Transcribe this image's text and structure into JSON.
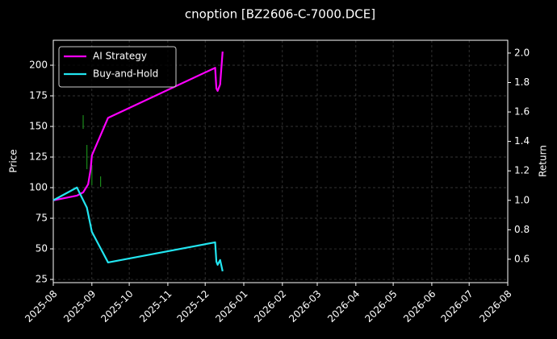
{
  "chart_data": {
    "type": "line",
    "title": "cnoption [BZ2606-C-7000.DCE]",
    "ylabel": "Price",
    "y2label": "Return",
    "xlim": [
      "2025-08",
      "2026-08"
    ],
    "xticks": [
      "2025-08",
      "2025-09",
      "2025-10",
      "2025-11",
      "2025-12",
      "2026-01",
      "2026-02",
      "2026-03",
      "2026-04",
      "2026-05",
      "2026-06",
      "2026-07",
      "2026-08"
    ],
    "ylim": [
      22.4,
      220.4
    ],
    "yticks": [
      25,
      50,
      75,
      100,
      125,
      150,
      175,
      200
    ],
    "y2lim": [
      0.441,
      2.087
    ],
    "y2ticks": [
      {
        "value": 0.6,
        "label": "0.6"
      },
      {
        "value": 0.8,
        "label": "0.8"
      },
      {
        "value": 1.0,
        "label": "1.0"
      },
      {
        "value": 1.2,
        "label": "1.2"
      },
      {
        "value": 1.4,
        "label": "1.4"
      },
      {
        "value": 1.6,
        "label": "1.6"
      },
      {
        "value": 1.8,
        "label": "1.8"
      },
      {
        "value": 2.0,
        "label": "2.0"
      }
    ],
    "grid": true,
    "legend": "upper left",
    "candles": {
      "color": "#1a8a1a",
      "x": [
        "2025-08-25",
        "2025-08-28",
        "2025-09-01",
        "2025-09-08"
      ],
      "high": [
        159.2,
        134.9,
        118.4,
        109.2
      ],
      "low": [
        148,
        115.1,
        102,
        100.7
      ]
    },
    "series": [
      {
        "name": "AI Strategy",
        "color": "#ff00ff",
        "axis": "y2",
        "x": [
          "2025-08-01",
          "2025-08-20",
          "2025-08-25",
          "2025-08-29",
          "2025-08-31",
          "2025-09-01",
          "2025-09-14",
          "2025-12-09",
          "2025-12-10",
          "2025-12-11",
          "2025-12-13",
          "2025-12-15"
        ],
        "values": [
          1.0,
          1.032,
          1.054,
          1.109,
          1.21,
          1.305,
          1.56,
          1.9,
          1.76,
          1.743,
          1.787,
          2.01
        ]
      },
      {
        "name": "Buy-and-Hold",
        "color": "#22e5f0",
        "axis": "y2",
        "x": [
          "2025-08-01",
          "2025-08-20",
          "2025-08-28",
          "2025-09-01",
          "2025-09-14",
          "2025-12-09",
          "2025-12-10",
          "2025-12-11",
          "2025-12-13",
          "2025-12-15"
        ],
        "values": [
          1.0,
          1.087,
          0.95,
          0.786,
          0.578,
          0.715,
          0.584,
          0.562,
          0.595,
          0.518
        ]
      }
    ]
  }
}
